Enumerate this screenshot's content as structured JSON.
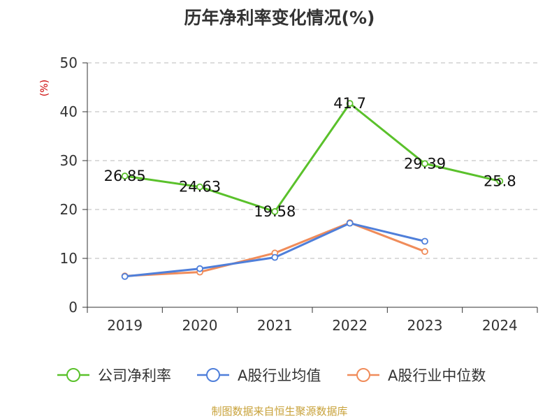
{
  "title": "历年净利率变化情况(%)",
  "source": "制图数据来自恒生聚源数据库",
  "colors": {
    "series_company": "#5ac12b",
    "series_average": "#4f7fda",
    "series_median": "#f08c5a",
    "grid": "#c8c8c8",
    "axis": "#333333"
  },
  "chart_data": {
    "type": "line",
    "title": "历年净利率变化情况(%)",
    "ylabel": "(%)",
    "xlabel": "",
    "ylim": [
      0,
      50
    ],
    "y_ticks": [
      "0",
      "10",
      "20",
      "30",
      "40",
      "50"
    ],
    "categories": [
      "2019",
      "2020",
      "2021",
      "2022",
      "2023",
      "2024"
    ],
    "grid": "horizontal dashed",
    "legend_position": "bottom",
    "series": [
      {
        "name": "公司净利率",
        "values": [
          26.85,
          24.63,
          19.58,
          41.7,
          29.39,
          25.8
        ],
        "labels": [
          "26.85",
          "24.63",
          "19.58",
          "41.7",
          "29.39",
          "25.8"
        ]
      },
      {
        "name": "A股行业均值",
        "values": [
          6.3,
          7.9,
          10.2,
          17.2,
          13.5,
          null
        ]
      },
      {
        "name": "A股行业中位数",
        "values": [
          6.4,
          7.2,
          11.1,
          17.3,
          11.4,
          null
        ]
      }
    ]
  }
}
